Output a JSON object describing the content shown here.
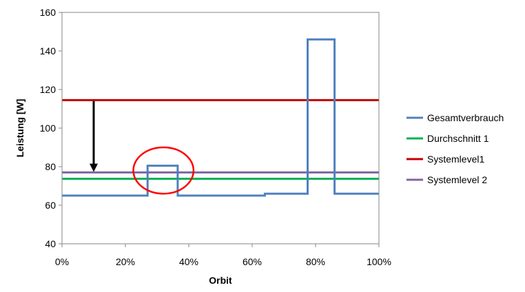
{
  "chart_data": {
    "type": "line",
    "title": "",
    "xlabel": "Orbit",
    "ylabel": "Leistung [W]",
    "xlim": [
      0,
      100
    ],
    "ylim": [
      40,
      160
    ],
    "x_ticks": [
      "0%",
      "20%",
      "40%",
      "60%",
      "80%",
      "100%"
    ],
    "x_tick_values": [
      0,
      20,
      40,
      60,
      80,
      100
    ],
    "y_ticks": [
      "40",
      "60",
      "80",
      "100",
      "120",
      "140",
      "160"
    ],
    "y_tick_values": [
      40,
      60,
      80,
      100,
      120,
      140,
      160
    ],
    "grid": false,
    "legend_position": "right",
    "series": [
      {
        "name": "Gesamtverbrauch",
        "color": "#4F81BD",
        "step": true,
        "x": [
          0,
          27,
          27,
          36.5,
          36.5,
          64,
          64,
          77.5,
          77.5,
          86,
          86,
          100
        ],
        "y": [
          65,
          65,
          80.5,
          80.5,
          65,
          65,
          66,
          66,
          146,
          146,
          66,
          66
        ]
      },
      {
        "name": "Durchschnitt 1",
        "color": "#00B050",
        "x": [
          0,
          100
        ],
        "y": [
          73.7,
          73.7
        ]
      },
      {
        "name": "Systemlevel1",
        "color": "#C00000",
        "x": [
          0,
          100
        ],
        "y": [
          114.5,
          114.5
        ]
      },
      {
        "name": "Systemlevel 2",
        "color": "#8064A2",
        "x": [
          0,
          100
        ],
        "y": [
          77,
          77
        ]
      }
    ],
    "annotations": [
      {
        "type": "arrow",
        "color": "#000000",
        "from": [
          10,
          114
        ],
        "to": [
          10,
          78
        ]
      },
      {
        "type": "ellipse",
        "color": "#FF0000",
        "center": [
          32,
          78
        ],
        "radius_x": 9.5,
        "radius_y": 12
      }
    ]
  }
}
